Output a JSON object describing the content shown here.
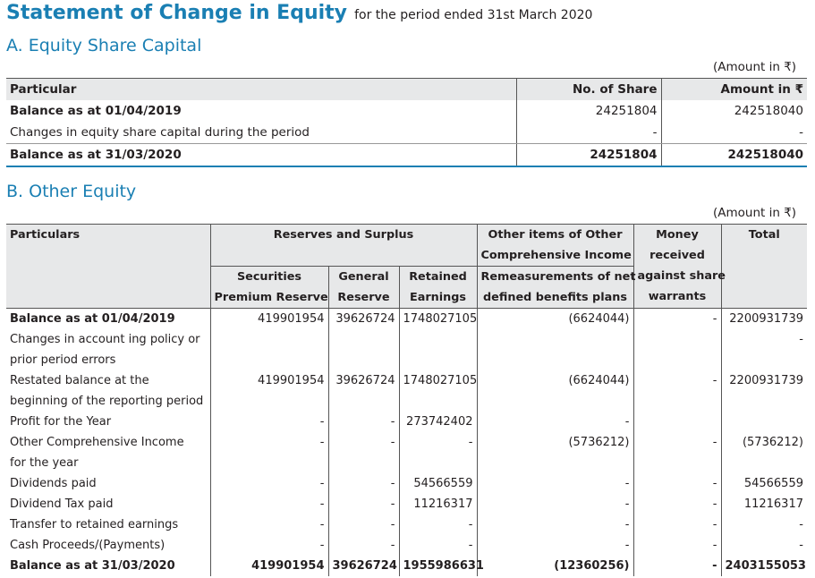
{
  "title": "Statement of Change in Equity",
  "subtitle": "for the period ended 31st March 2020",
  "section_a": {
    "heading": "A.  Equity Share Capital",
    "amount_note": "(Amount in ₹)",
    "headers": [
      "Particular",
      "No. of Share",
      "Amount in ₹"
    ],
    "rows": [
      {
        "label": "Balance as at 01/04/2019",
        "shares": "24251804",
        "amount": "242518040"
      },
      {
        "label": "Changes in equity share capital during the period",
        "shares": "-",
        "amount": "-"
      },
      {
        "label": "Balance as at 31/03/2020",
        "shares": "24251804",
        "amount": "242518040"
      }
    ]
  },
  "section_b": {
    "heading": "B.  Other Equity",
    "amount_note": "(Amount in ₹)",
    "headers": {
      "particulars": "Particulars",
      "reserves_surplus": "Reserves and Surplus",
      "oci_line1": "Other items of Other",
      "oci_line2": "Comprehensive Income",
      "money_line1": "Money",
      "money_line2": "received",
      "money_line3": "against share",
      "money_line4": "warrants",
      "total": "Total",
      "securities_line1": "Securities",
      "securities_line2": "Premium Reserve",
      "general_line1": "General",
      "general_line2": "Reserve",
      "retained_line1": "Retained",
      "retained_line2": "Earnings",
      "remeasure_line1": "Remeasurements of net",
      "remeasure_line2": "defined benefits plans"
    },
    "rows": [
      {
        "label1": "Balance as at 01/04/2019",
        "label2": "",
        "sec": "419901954",
        "gen": "39626724",
        "ret": "1748027105",
        "oci": "(6624044)",
        "money": "-",
        "total": "2200931739"
      },
      {
        "label1": "Changes in account ing policy or",
        "label2": "prior period errors",
        "sec": "",
        "gen": "",
        "ret": "",
        "oci": "",
        "money": "",
        "total": "-"
      },
      {
        "label1": "Restated balance at the",
        "label2": "beginning of the reporting period",
        "sec": "419901954",
        "gen": "39626724",
        "ret": "1748027105",
        "oci": "(6624044)",
        "money": "-",
        "total": "2200931739"
      },
      {
        "label1": "Profit for the Year",
        "label2": "",
        "sec": "-",
        "gen": "-",
        "ret": "273742402",
        "oci": "-",
        "money": "",
        "total": ""
      },
      {
        "label1": "Other Comprehensive Income",
        "label2": "for the year",
        "sec": "-",
        "gen": "-",
        "ret": "-",
        "oci": "(5736212)",
        "money": "-",
        "total": "(5736212)"
      },
      {
        "label1": "Dividends paid",
        "label2": "",
        "sec": "-",
        "gen": "-",
        "ret": "54566559",
        "oci": "-",
        "money": "-",
        "total": "54566559"
      },
      {
        "label1": "Dividend Tax paid",
        "label2": "",
        "sec": "-",
        "gen": "-",
        "ret": "11216317",
        "oci": "-",
        "money": "-",
        "total": "11216317"
      },
      {
        "label1": "Transfer to retained earnings",
        "label2": "",
        "sec": "-",
        "gen": "-",
        "ret": "-",
        "oci": "-",
        "money": "-",
        "total": "-"
      },
      {
        "label1": "Cash Proceeds/(Payments)",
        "label2": "",
        "sec": "-",
        "gen": "-",
        "ret": "-",
        "oci": "-",
        "money": "-",
        "total": "-"
      },
      {
        "label1": "Balance as at 31/03/2020",
        "label2": "",
        "sec": "419901954",
        "gen": "39626724",
        "ret": "1955986631",
        "oci": "(12360256)",
        "money": "-",
        "total": "2403155053"
      }
    ]
  }
}
